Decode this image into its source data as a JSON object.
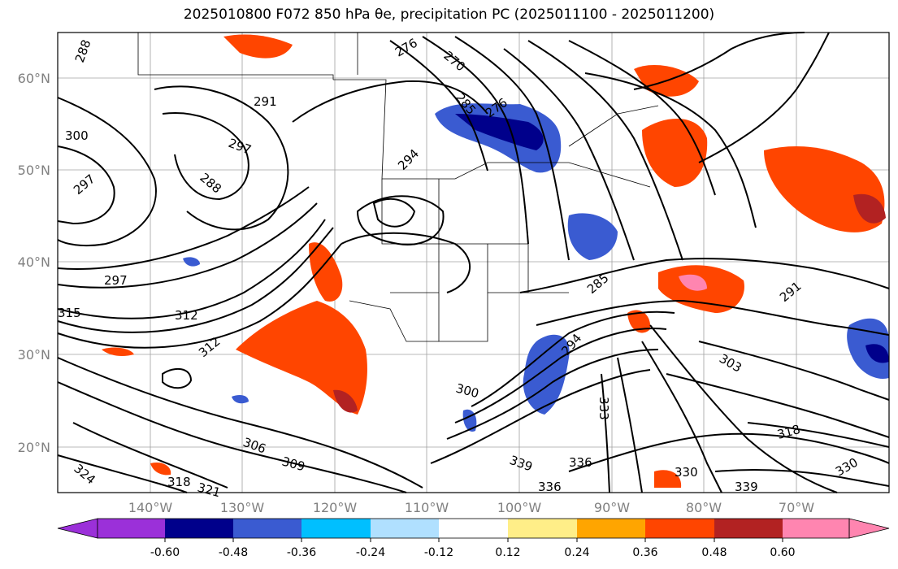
{
  "title": "2025010800 F072 850 hPa θe, precipitation PC (2025011100 - 2025011200)",
  "map": {
    "lat_ticks": [
      "20°N",
      "30°N",
      "40°N",
      "50°N",
      "60°N"
    ],
    "lon_ticks": [
      "140°W",
      "130°W",
      "120°W",
      "110°W",
      "100°W",
      "90°W",
      "80°W",
      "70°W"
    ],
    "contour_labels": [
      "288",
      "276",
      "270",
      "285",
      "291",
      "300",
      "297",
      "288",
      "297",
      "294",
      "276",
      "297",
      "285",
      "291",
      "303",
      "312",
      "312",
      "315",
      "306",
      "309",
      "300",
      "294",
      "333",
      "318",
      "321",
      "318",
      "324",
      "336",
      "339",
      "336",
      "330",
      "339",
      "330"
    ]
  },
  "colorbar": {
    "ticks": [
      "-0.60",
      "-0.48",
      "-0.36",
      "-0.24",
      "-0.12",
      "0.12",
      "0.24",
      "0.36",
      "0.48",
      "0.60"
    ],
    "colors": [
      "#9b30d9",
      "#00008b",
      "#3a5bd1",
      "#00bfff",
      "#b0e0ff",
      "#ffffff",
      "#ffee88",
      "#ffa500",
      "#ff4500",
      "#b22222",
      "#ff85b0"
    ]
  }
}
